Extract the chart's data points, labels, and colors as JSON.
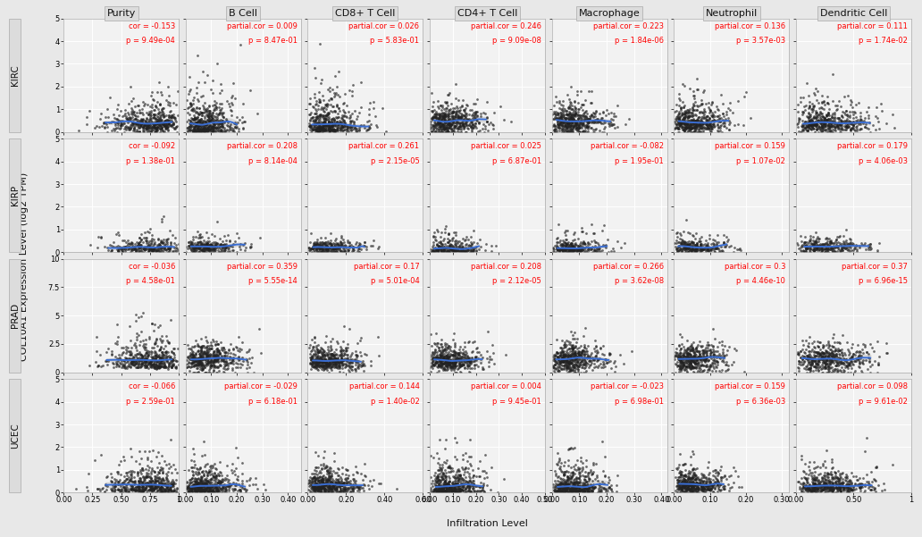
{
  "col_labels": [
    "Purity",
    "B Cell",
    "CD8+ T Cell",
    "CD4+ T Cell",
    "Macrophage",
    "Neutrophil",
    "Dendritic Cell"
  ],
  "row_labels": [
    "KIRC",
    "KIRP",
    "PRAD",
    "UCEC"
  ],
  "annotations": {
    "KIRC": {
      "Purity": {
        "label": "cor = -0.153",
        "p": "p = 9.49e-04"
      },
      "B Cell": {
        "label": "partial.cor = 0.009",
        "p": "p = 8.47e-01"
      },
      "CD8+ T Cell": {
        "label": "partial.cor = 0.026",
        "p": "p = 5.83e-01"
      },
      "CD4+ T Cell": {
        "label": "partial.cor = 0.246",
        "p": "p = 9.09e-08"
      },
      "Macrophage": {
        "label": "partial.cor = 0.223",
        "p": "p = 1.84e-06"
      },
      "Neutrophil": {
        "label": "partial.cor = 0.136",
        "p": "p = 3.57e-03"
      },
      "Dendritic Cell": {
        "label": "partial.cor = 0.111",
        "p": "p = 1.74e-02"
      }
    },
    "KIRP": {
      "Purity": {
        "label": "cor = -0.092",
        "p": "p = 1.38e-01"
      },
      "B Cell": {
        "label": "partial.cor = 0.208",
        "p": "p = 8.14e-04"
      },
      "CD8+ T Cell": {
        "label": "partial.cor = 0.261",
        "p": "p = 2.15e-05"
      },
      "CD4+ T Cell": {
        "label": "partial.cor = 0.025",
        "p": "p = 6.87e-01"
      },
      "Macrophage": {
        "label": "partial.cor = -0.082",
        "p": "p = 1.95e-01"
      },
      "Neutrophil": {
        "label": "partial.cor = 0.159",
        "p": "p = 1.07e-02"
      },
      "Dendritic Cell": {
        "label": "partial.cor = 0.179",
        "p": "p = 4.06e-03"
      }
    },
    "PRAD": {
      "Purity": {
        "label": "cor = -0.036",
        "p": "p = 4.58e-01"
      },
      "B Cell": {
        "label": "partial.cor = 0.359",
        "p": "p = 5.55e-14"
      },
      "CD8+ T Cell": {
        "label": "partial.cor = 0.17",
        "p": "p = 5.01e-04"
      },
      "CD4+ T Cell": {
        "label": "partial.cor = 0.208",
        "p": "p = 2.12e-05"
      },
      "Macrophage": {
        "label": "partial.cor = 0.266",
        "p": "p = 3.62e-08"
      },
      "Neutrophil": {
        "label": "partial.cor = 0.3",
        "p": "p = 4.46e-10"
      },
      "Dendritic Cell": {
        "label": "partial.cor = 0.37",
        "p": "p = 6.96e-15"
      }
    },
    "UCEC": {
      "Purity": {
        "label": "cor = -0.066",
        "p": "p = 2.59e-01"
      },
      "B Cell": {
        "label": "partial.cor = -0.029",
        "p": "p = 6.18e-01"
      },
      "CD8+ T Cell": {
        "label": "partial.cor = 0.144",
        "p": "p = 1.40e-02"
      },
      "CD4+ T Cell": {
        "label": "partial.cor = 0.004",
        "p": "p = 9.45e-01"
      },
      "Macrophage": {
        "label": "partial.cor = -0.023",
        "p": "p = 6.98e-01"
      },
      "Neutrophil": {
        "label": "partial.cor = 0.159",
        "p": "p = 6.36e-03"
      },
      "Dendritic Cell": {
        "label": "partial.cor = 0.098",
        "p": "p = 9.61e-02"
      }
    }
  },
  "n_points": {
    "KIRC": 530,
    "KIRP": 290,
    "PRAD": 500,
    "UCEC": 540
  },
  "ylims": {
    "KIRC": [
      0,
      5
    ],
    "KIRP": [
      0,
      5
    ],
    "PRAD": [
      0,
      10
    ],
    "UCEC": [
      0,
      5
    ]
  },
  "yticks": {
    "KIRC": [
      0,
      1,
      2,
      3,
      4,
      5
    ],
    "KIRP": [
      0,
      1,
      2,
      3,
      4,
      5
    ],
    "PRAD": [
      0,
      2.5,
      5.0,
      7.5,
      10.0
    ],
    "UCEC": [
      0,
      1,
      2,
      3,
      4,
      5
    ]
  },
  "xlims": {
    "Purity": [
      0.0,
      1.0
    ],
    "B Cell": [
      0.0,
      0.45
    ],
    "CD8+ T Cell": [
      0.0,
      0.6
    ],
    "CD4+ T Cell": [
      0.0,
      0.5
    ],
    "Macrophage": [
      0.0,
      0.42
    ],
    "Neutrophil": [
      0.0,
      0.32
    ],
    "Dendritic Cell": [
      0.0,
      1.0
    ]
  },
  "xticks": {
    "Purity": [
      0.0,
      0.25,
      0.5,
      0.75,
      1.0
    ],
    "B Cell": [
      0.0,
      0.1,
      0.2,
      0.3,
      0.4
    ],
    "CD8+ T Cell": [
      0.0,
      0.2,
      0.4,
      0.6
    ],
    "CD4+ T Cell": [
      0.0,
      0.1,
      0.2,
      0.3,
      0.4,
      0.5
    ],
    "Macrophage": [
      0.0,
      0.1,
      0.2,
      0.3,
      0.4
    ],
    "Neutrophil": [
      0.0,
      0.1,
      0.2,
      0.3
    ],
    "Dendritic Cell": [
      0.0,
      0.5,
      1.0
    ]
  },
  "background_color": "#E8E8E8",
  "panel_bg": "#F2F2F2",
  "header_bg": "#DCDCDC",
  "row_label_bg": "#DCDCDC",
  "grid_color": "#FFFFFF",
  "dot_color": "#222222",
  "dot_size": 4,
  "line_color": "#3A6ED4",
  "shade_color": "#A0A0A0",
  "ylabel": "COL10A1 Expression Level (log2 TPM)",
  "xlabel": "Infiltration Level",
  "annot_fontsize": 6.0,
  "tick_fontsize": 6.0,
  "header_fontsize": 8.0,
  "row_label_fontsize": 7.5,
  "axis_label_fontsize": 8.0
}
